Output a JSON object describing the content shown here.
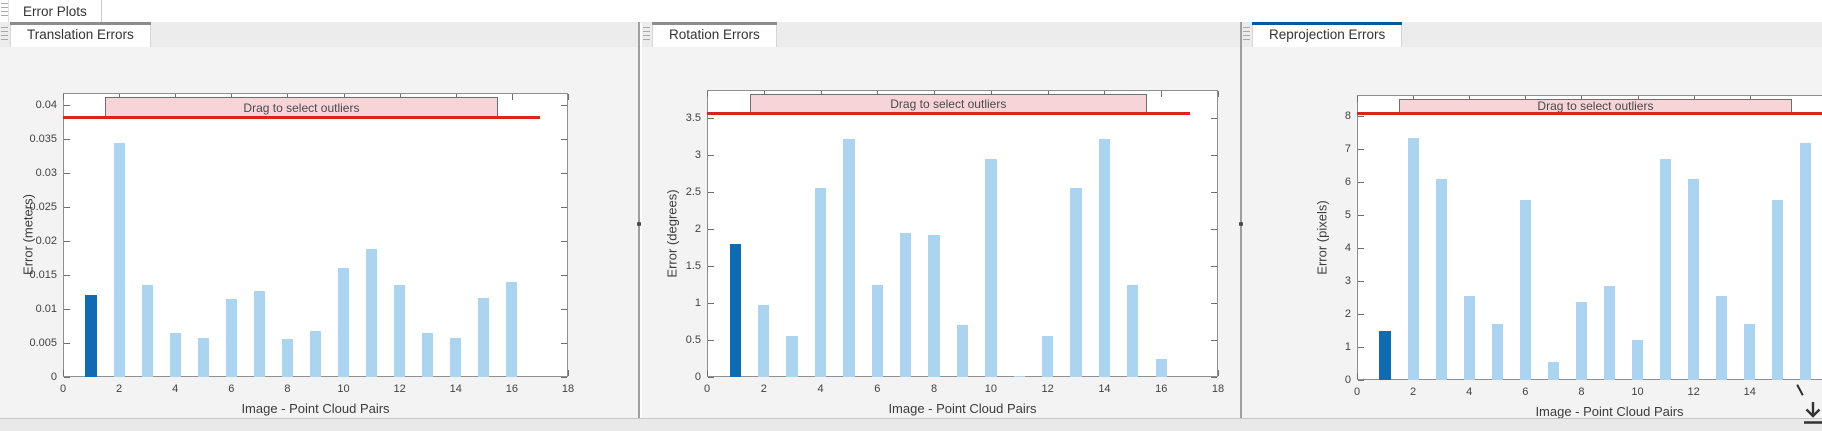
{
  "app": {
    "document_tab": "Error Plots"
  },
  "panels": [
    {
      "tab": "Translation Errors",
      "selected": true,
      "accent_color": "#8c8c8c"
    },
    {
      "tab": "Rotation Errors",
      "selected": true,
      "accent_color": "#8c8c8c"
    },
    {
      "tab": "Reprojection Errors",
      "selected": true,
      "accent_color": "#0d5796"
    }
  ],
  "chart_data": [
    {
      "type": "bar",
      "panel_tab": "Translation Errors",
      "xlabel": "Image - Point Cloud Pairs",
      "ylabel": "Error (meters)",
      "xlim": [
        0,
        18
      ],
      "ylim": [
        0,
        0.0418
      ],
      "xticks": [
        0,
        2,
        4,
        6,
        8,
        10,
        12,
        14,
        16,
        18
      ],
      "yticks": [
        0,
        0.005,
        0.01,
        0.015,
        0.02,
        0.025,
        0.03,
        0.035,
        0.04
      ],
      "ytick_labels": [
        "0",
        "0.005",
        "0.01",
        "0.015",
        "0.02",
        "0.025",
        "0.03",
        "0.035",
        "0.04"
      ],
      "x": [
        1,
        2,
        3,
        4,
        5,
        6,
        7,
        8,
        9,
        10,
        11,
        12,
        13,
        14,
        15,
        16
      ],
      "values": [
        0.012,
        0.0345,
        0.0135,
        0.0065,
        0.0058,
        0.0115,
        0.0126,
        0.0056,
        0.0067,
        0.016,
        0.0188,
        0.0135,
        0.0065,
        0.0058,
        0.0116,
        0.014
      ],
      "highlight_index": 0,
      "bar_color": "#abd4f0",
      "highlight_color": "#0e6cb5",
      "threshold": {
        "value": 0.0382,
        "x0": 0,
        "x1": 17,
        "color": "#dd2222"
      },
      "band": {
        "label": "Drag to select outliers",
        "x0": 1.5,
        "x1": 15.5,
        "y0": 0.0382,
        "y1": 0.0412,
        "fill": "#f6d4d7",
        "border": "#6e6e6e"
      },
      "grid": false,
      "legend": null
    },
    {
      "type": "bar",
      "panel_tab": "Rotation Errors",
      "xlabel": "Image - Point Cloud Pairs",
      "ylabel": "Error (degrees)",
      "xlim": [
        0,
        18
      ],
      "ylim": [
        0,
        3.88
      ],
      "xticks": [
        0,
        2,
        4,
        6,
        8,
        10,
        12,
        14,
        16,
        18
      ],
      "yticks": [
        0,
        0.5,
        1,
        1.5,
        2,
        2.5,
        3,
        3.5
      ],
      "ytick_labels": [
        "0",
        "0.5",
        "1",
        "1.5",
        "2",
        "2.5",
        "3",
        "3.5"
      ],
      "x": [
        1,
        2,
        3,
        4,
        5,
        6,
        7,
        8,
        9,
        10,
        11,
        12,
        13,
        14,
        15,
        16
      ],
      "values": [
        1.8,
        0.97,
        0.56,
        2.56,
        3.22,
        1.25,
        1.95,
        1.92,
        0.7,
        2.95,
        0.02,
        0.55,
        2.56,
        3.22,
        1.25,
        0.25
      ],
      "highlight_index": 0,
      "bar_color": "#abd4f0",
      "highlight_color": "#0e6cb5",
      "threshold": {
        "value": 3.57,
        "x0": 0,
        "x1": 17,
        "color": "#dd2222"
      },
      "band": {
        "label": "Drag to select outliers",
        "x0": 1.5,
        "x1": 15.5,
        "y0": 3.57,
        "y1": 3.82,
        "fill": "#f6d4d7",
        "border": "#6e6e6e"
      },
      "grid": false,
      "legend": null
    },
    {
      "type": "bar",
      "panel_tab": "Reprojection Errors",
      "xlabel": "Image - Point Cloud Pairs",
      "ylabel": "Error (pixels)",
      "xlim": [
        0,
        18
      ],
      "ylim": [
        0,
        8.64
      ],
      "xticks": [
        0,
        2,
        4,
        6,
        8,
        10,
        12,
        14
      ],
      "yticks": [
        0,
        1,
        2,
        3,
        4,
        5,
        6,
        7,
        8
      ],
      "ytick_labels": [
        "0",
        "1",
        "2",
        "3",
        "4",
        "5",
        "6",
        "7",
        "8"
      ],
      "x": [
        1,
        2,
        3,
        4,
        5,
        6,
        7,
        8,
        9,
        10,
        11,
        12,
        13,
        14,
        15,
        16
      ],
      "values": [
        1.5,
        7.35,
        6.1,
        2.55,
        1.7,
        5.45,
        0.55,
        2.35,
        2.85,
        1.2,
        6.7,
        6.1,
        2.55,
        1.7,
        5.45,
        7.2
      ],
      "highlight_index": 0,
      "bar_color": "#abd4f0",
      "highlight_color": "#0e6cb5",
      "threshold": {
        "value": 8.1,
        "x0": 0,
        "x1": 17,
        "color": "#dd2222"
      },
      "band": {
        "label": "Drag to select outliers",
        "x0": 1.5,
        "x1": 15.5,
        "y0": 8.1,
        "y1": 8.52,
        "fill": "#f6d4d7",
        "border": "#6e6e6e"
      },
      "grid": false,
      "legend": null
    }
  ],
  "icons": {
    "export": "download-icon",
    "grip": "grip-icon",
    "cursor": "cursor-mark"
  },
  "colors": {
    "divider": "#9f9f9f",
    "figure_bg": "#f3f3f3",
    "tabbar_bg": "#ececec",
    "active_tab_accent": "#0d5796",
    "inactive_tab_accent": "#8c8c8c"
  }
}
